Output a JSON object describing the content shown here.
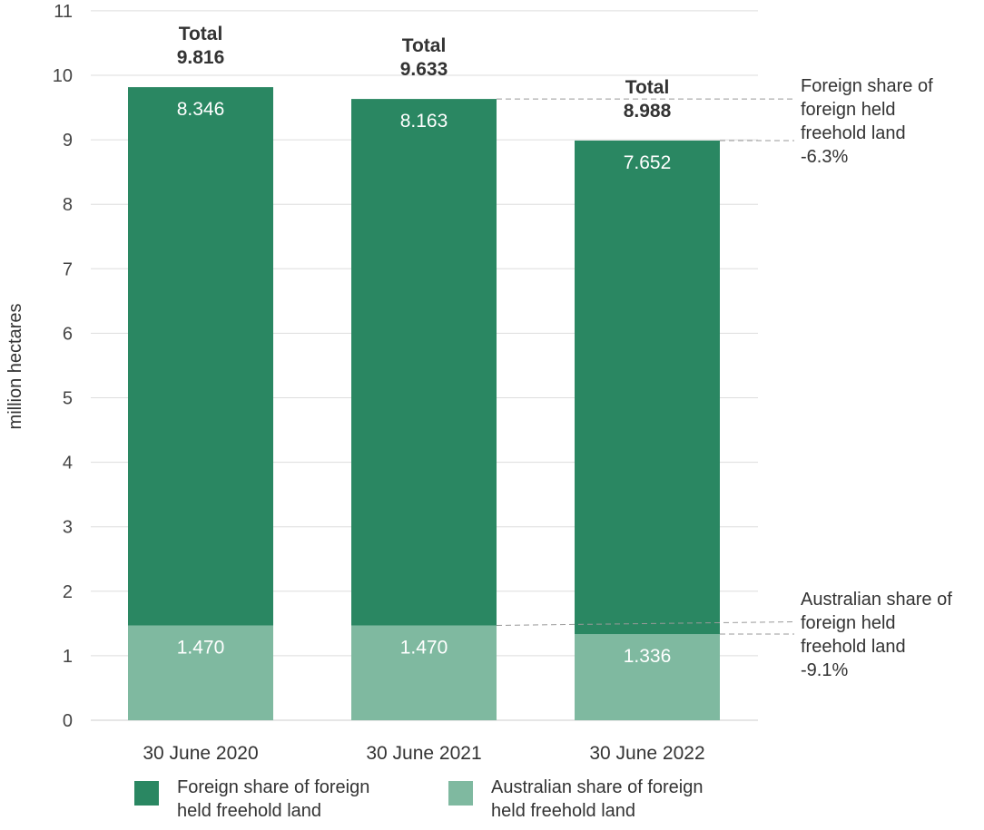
{
  "chart_data": {
    "type": "bar",
    "stacked": true,
    "ylabel": "million hectares",
    "ylim": [
      0,
      11
    ],
    "yticks": [
      0,
      1,
      2,
      3,
      4,
      5,
      6,
      7,
      8,
      9,
      10,
      11
    ],
    "grid": true,
    "categories": [
      "30 June 2020",
      "30 June 2021",
      "30 June 2022"
    ],
    "series": [
      {
        "name": "Australian share of foreign held freehold land",
        "values": [
          1.47,
          1.47,
          1.336
        ],
        "labels": [
          "1.470",
          "1.470",
          "1.336"
        ],
        "color": "#7fb9a0"
      },
      {
        "name": "Foreign share of foreign held freehold land",
        "values": [
          8.346,
          8.163,
          7.652
        ],
        "labels": [
          "8.346",
          "8.163",
          "7.652"
        ],
        "color": "#2a8762"
      }
    ],
    "totals": {
      "caption": "Total",
      "values": [
        9.816,
        9.633,
        8.988
      ],
      "labels": [
        "9.816",
        "9.633",
        "8.988"
      ]
    },
    "annotations": [
      {
        "lines": [
          "Foreign share of",
          "foreign held",
          "freehold land",
          "-6.3%"
        ]
      },
      {
        "lines": [
          "Australian share of",
          "foreign held",
          "freehold land",
          "-9.1%"
        ]
      }
    ],
    "legend": {
      "position": "bottom",
      "items": [
        {
          "label": "Foreign share of foreign\nheld freehold land",
          "color": "#2a8762"
        },
        {
          "label": "Australian share of foreign\nheld freehold land",
          "color": "#7fb9a0"
        }
      ]
    }
  }
}
